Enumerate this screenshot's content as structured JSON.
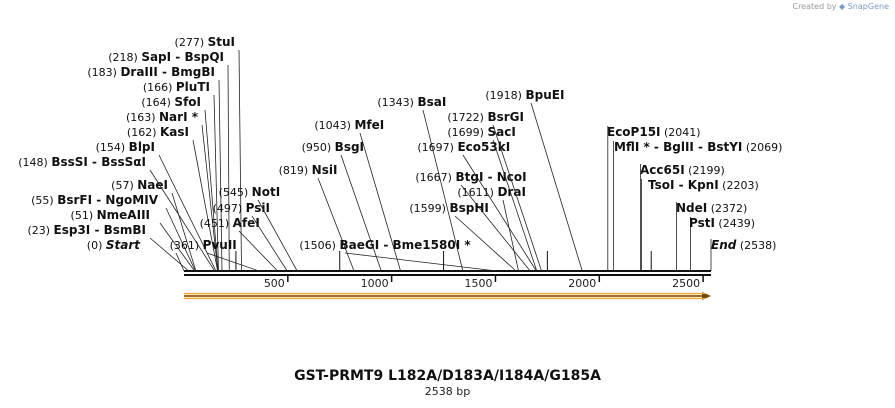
{
  "credit": {
    "prefix": "Created by",
    "brand": "SnapGene"
  },
  "map": {
    "name": "GST-PRMT9 L182A/D183A/I184A/G185A",
    "length_label": "2538 bp",
    "length": 2538,
    "ruler_ticks": [
      {
        "pos": 500,
        "label": "500"
      },
      {
        "pos": 1000,
        "label": "1000"
      },
      {
        "pos": 1500,
        "label": "1500"
      },
      {
        "pos": 2000,
        "label": "2000"
      },
      {
        "pos": 2500,
        "label": "2500"
      }
    ],
    "minor_ticks": [
      250,
      750,
      1250,
      1750,
      2250
    ],
    "feature": {
      "name": "orf-arrow",
      "start": 0,
      "end": 2538,
      "color": "#f3a93b",
      "fill": "#fbe3b3"
    },
    "sites": [
      {
        "id": "start",
        "num": "(0)",
        "name": "Start",
        "pos": 0,
        "italic": true
      },
      {
        "id": "esp3i",
        "num": "(23)",
        "name": "Esp3I  -  BsmBI",
        "pos": 23
      },
      {
        "id": "nmeaiii",
        "num": "(51)",
        "name": "NmeAIII",
        "pos": 51
      },
      {
        "id": "bsrfi",
        "num": "(55)",
        "name": "BsrFI  -  NgoMIV",
        "pos": 55
      },
      {
        "id": "naei",
        "num": "(57)",
        "name": "NaeI",
        "pos": 57
      },
      {
        "id": "bsssi",
        "num": "(148)",
        "name": "BssSI  -  BssSαI",
        "pos": 148
      },
      {
        "id": "blpi",
        "num": "(154)",
        "name": "BlpI",
        "pos": 154
      },
      {
        "id": "kasi",
        "num": "(162)",
        "name": "KasI",
        "pos": 162
      },
      {
        "id": "nari",
        "num": "(163)",
        "name": "NarI *",
        "pos": 163
      },
      {
        "id": "sfoi",
        "num": "(164)",
        "name": "SfoI",
        "pos": 164
      },
      {
        "id": "pluti",
        "num": "(166)",
        "name": "PluTI",
        "pos": 166
      },
      {
        "id": "draiii",
        "num": "(183)",
        "name": "DraIII  -  BmgBI",
        "pos": 183
      },
      {
        "id": "sapi",
        "num": "(218)",
        "name": "SapI  -  BspQI",
        "pos": 218
      },
      {
        "id": "stui",
        "num": "(277)",
        "name": "StuI",
        "pos": 277
      },
      {
        "id": "pvuii",
        "num": "(361)",
        "name": "PvuII",
        "pos": 361
      },
      {
        "id": "afei",
        "num": "(451)",
        "name": "AfeI",
        "pos": 451
      },
      {
        "id": "psii",
        "num": "(497)",
        "name": "PsiI",
        "pos": 497
      },
      {
        "id": "noti",
        "num": "(545)",
        "name": "NotI",
        "pos": 545
      },
      {
        "id": "nsii",
        "num": "(819)",
        "name": "NsiI",
        "pos": 819
      },
      {
        "id": "bsgi",
        "num": "(950)",
        "name": "BsgI",
        "pos": 950
      },
      {
        "id": "mfei",
        "num": "(1043)",
        "name": "MfeI",
        "pos": 1043
      },
      {
        "id": "baegi",
        "num": "(1506)",
        "name": "BaeGI  -  Bme1580I *",
        "pos": 1506
      },
      {
        "id": "bsai",
        "num": "(1343)",
        "name": "BsaI",
        "pos": 1343
      },
      {
        "id": "bsphi",
        "num": "(1599)",
        "name": "BspHI",
        "pos": 1599
      },
      {
        "id": "drai",
        "num": "(1611)",
        "name": "DraI",
        "pos": 1611
      },
      {
        "id": "btgi",
        "num": "(1667)",
        "name": "BtgI  -  NcoI",
        "pos": 1667
      },
      {
        "id": "eco53ki",
        "num": "(1697)",
        "name": "Eco53kI",
        "pos": 1697
      },
      {
        "id": "saci",
        "num": "(1699)",
        "name": "SacI",
        "pos": 1699
      },
      {
        "id": "bsrgi",
        "num": "(1722)",
        "name": "BsrGI",
        "pos": 1722
      },
      {
        "id": "bpuei",
        "num": "(1918)",
        "name": "BpuEI",
        "pos": 1918
      },
      {
        "id": "ecop15i",
        "num": "(2041)",
        "name": "EcoP15I",
        "pos": 2041
      },
      {
        "id": "mfli",
        "num": "(2069)",
        "name": "MflI *  -  BglII  -  BstYI",
        "pos": 2069
      },
      {
        "id": "acc65i",
        "num": "(2199)",
        "name": "Acc65I",
        "pos": 2199
      },
      {
        "id": "tsoi",
        "num": "(2203)",
        "name": "TsoI  -  KpnI",
        "pos": 2203
      },
      {
        "id": "ndei",
        "num": "(2372)",
        "name": "NdeI",
        "pos": 2372
      },
      {
        "id": "psti",
        "num": "(2439)",
        "name": "PstI",
        "pos": 2439
      },
      {
        "id": "end",
        "num": "(2538)",
        "name": "End",
        "pos": 2538,
        "italic": true
      }
    ]
  }
}
